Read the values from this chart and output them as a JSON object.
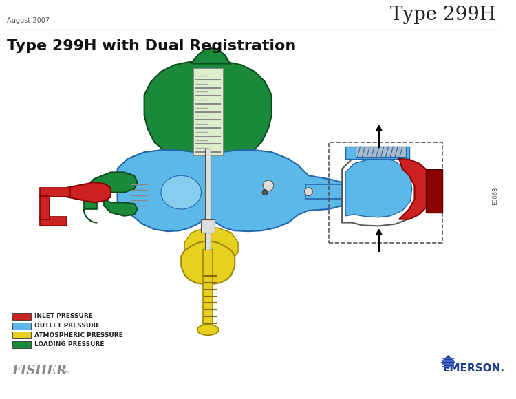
{
  "title_top_left": "August 2007",
  "title_top_right": "Type 299H",
  "main_title": "Type 299H with Dual Registration",
  "legend_items": [
    {
      "label": "INLET PRESSURE",
      "color": "#CC2222"
    },
    {
      "label": "OUTLET PRESSURE",
      "color": "#5BB8E8"
    },
    {
      "label": "ATMOSPHERIC PRESSURE",
      "color": "#E8D020"
    },
    {
      "label": "LOADING PRESSURE",
      "color": "#1A8A3A"
    }
  ],
  "fisher_text": "FISHER",
  "emerson_text": "EMERSON.",
  "code_text": "E0068",
  "bg_color": "#FFFFFF",
  "border_color": "#333333",
  "valve_colors": {
    "blue": "#5BB8E8",
    "green": "#1A8A3A",
    "red": "#CC2222",
    "yellow": "#E8D020",
    "gray": "#AAAAAA",
    "dark_gray": "#555555",
    "white": "#FFFFFF",
    "light_gray": "#DDDDDD"
  }
}
